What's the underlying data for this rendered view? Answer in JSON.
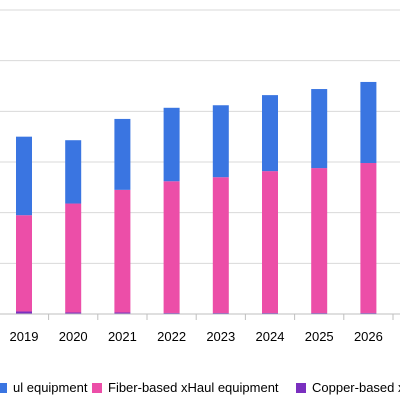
{
  "chart_data": {
    "type": "bar",
    "stacked": true,
    "categories": [
      "2019",
      "2020",
      "2021",
      "2022",
      "2023",
      "2024",
      "2025",
      "2026"
    ],
    "ylim": [
      0,
      6
    ],
    "grid": true,
    "legend_position": "bottom",
    "series": [
      {
        "name": "Copper-based xHaul equipment",
        "color": "#7a2fbf",
        "values": [
          0.05,
          0.03,
          0.03,
          0.02,
          0.02,
          0.02,
          0.02,
          0.02
        ]
      },
      {
        "name": "Fiber-based xHaul equipment",
        "color": "#ec4ea8",
        "values": [
          1.9,
          2.15,
          2.42,
          2.6,
          2.68,
          2.8,
          2.86,
          2.96
        ]
      },
      {
        "name": "ul equipment",
        "color": "#3a75e1",
        "values": [
          1.55,
          1.25,
          1.4,
          1.45,
          1.42,
          1.5,
          1.56,
          1.6
        ]
      }
    ]
  },
  "legend": {
    "items": [
      {
        "label": "ul equipment",
        "color": "#3a75e1"
      },
      {
        "label": "Fiber-based xHaul equipment",
        "color": "#ec4ea8"
      },
      {
        "label": "Copper-based xHaul",
        "color": "#7a2fbf"
      }
    ]
  }
}
